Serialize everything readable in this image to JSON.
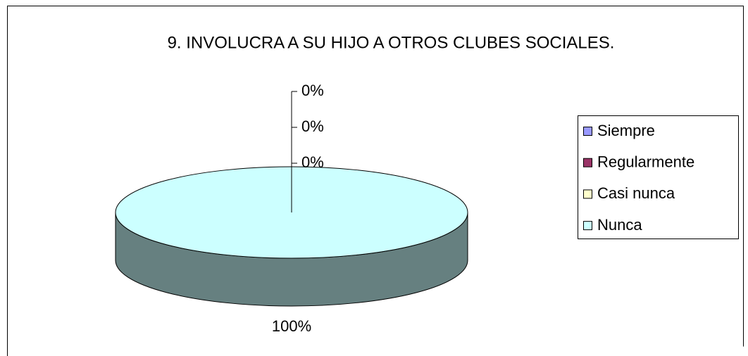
{
  "chart_data": {
    "type": "pie",
    "title": "9. INVOLUCRA A SU HIJO A OTROS CLUBES SOCIALES.",
    "categories": [
      "Siempre",
      "Regularmente",
      "Casi nunca",
      "Nunca"
    ],
    "values": [
      0,
      0,
      0,
      100
    ],
    "value_labels": [
      "0%",
      "0%",
      "0%",
      "100%"
    ],
    "colors": [
      "#9999ff",
      "#993366",
      "#ffffcc",
      "#ccffff"
    ],
    "legend": "right"
  }
}
